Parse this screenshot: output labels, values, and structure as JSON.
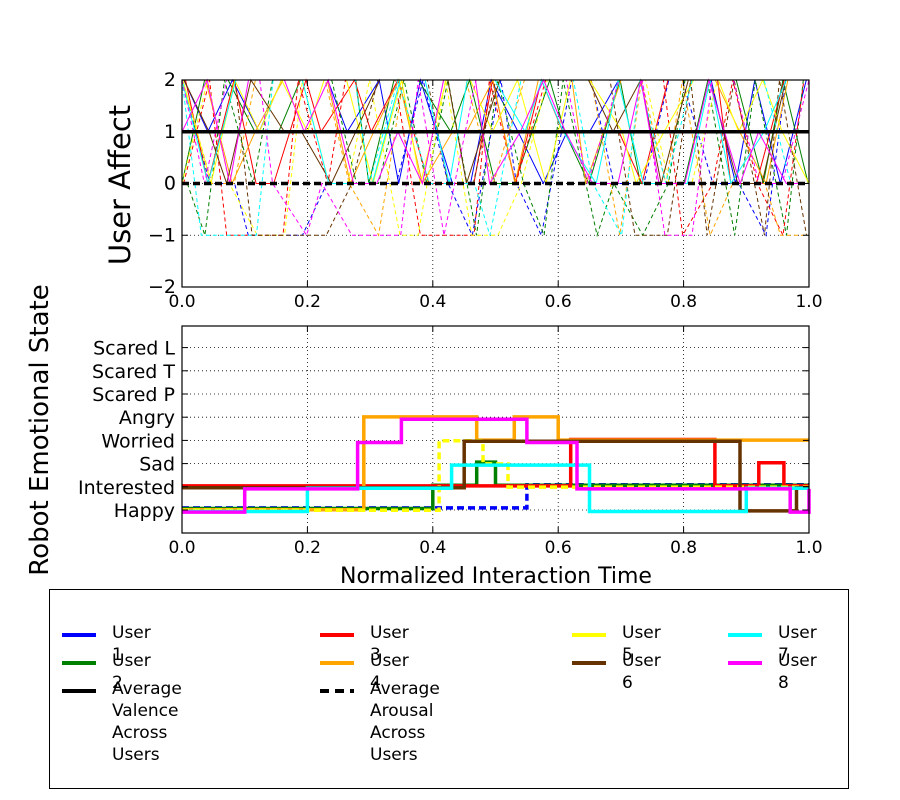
{
  "chart_data": [
    {
      "type": "line",
      "panel": "top",
      "xlabel": "",
      "ylabel": "User Affect",
      "xlim": [
        0.0,
        1.0
      ],
      "ylim": [
        -2,
        2
      ],
      "xticks": [
        "0.0",
        "0.2",
        "0.4",
        "0.6",
        "0.8",
        "1.0"
      ],
      "yticks": [
        "−2",
        "−1",
        "0",
        "1",
        "2"
      ],
      "grid": true,
      "series": [
        {
          "name": "Average Valence Across Users",
          "color": "#000000",
          "style": "solid",
          "x": [
            0.0,
            1.0
          ],
          "values": [
            1.0,
            1.0
          ]
        },
        {
          "name": "Average Arousal Across Users",
          "color": "#000000",
          "style": "dashed",
          "x": [
            0.0,
            1.0
          ],
          "values": [
            0.0,
            0.0
          ]
        }
      ],
      "note_series": "Per-user valence (solid) and arousal (dashed) traces oscillate rapidly between −1 and 2 for Users 1–8"
    },
    {
      "type": "line",
      "panel": "bottom",
      "xlabel": "Normalized Interaction Time",
      "ylabel": "Robot Emotional State",
      "xlim": [
        0.0,
        1.0
      ],
      "xticks": [
        "0.0",
        "0.2",
        "0.4",
        "0.6",
        "0.8",
        "1.0"
      ],
      "states": [
        "Happy",
        "Interested",
        "Sad",
        "Worried",
        "Angry",
        "Scared P",
        "Scared T",
        "Scared L"
      ],
      "grid": true,
      "series": [
        {
          "name": "User 1",
          "color": "#0000ff",
          "x": [
            0.0,
            0.45,
            0.52,
            0.55,
            1.0
          ],
          "values": [
            "Happy",
            "Happy",
            "Happy",
            "Interested",
            "Interested"
          ]
        },
        {
          "name": "User 2",
          "color": "#008000",
          "x": [
            0.0,
            0.4,
            0.47,
            0.5,
            1.0
          ],
          "values": [
            "Happy",
            "Interested",
            "Sad",
            "Interested",
            "Interested"
          ]
        },
        {
          "name": "User 3",
          "color": "#ff0000",
          "x": [
            0.0,
            0.62,
            0.85,
            0.92,
            0.96,
            1.0
          ],
          "values": [
            "Interested",
            "Worried",
            "Interested",
            "Sad",
            "Interested",
            "Interested"
          ]
        },
        {
          "name": "User 4",
          "color": "#ffa500",
          "x": [
            0.0,
            0.29,
            0.47,
            0.53,
            0.6,
            1.0
          ],
          "values": [
            "Happy",
            "Angry",
            "Worried",
            "Angry",
            "Worried",
            "Worried"
          ]
        },
        {
          "name": "User 5",
          "color": "#ffff00",
          "x": [
            0.0,
            0.41,
            0.48,
            0.52,
            1.0
          ],
          "values": [
            "Happy",
            "Worried",
            "Sad",
            "Interested",
            "Interested"
          ]
        },
        {
          "name": "User 6",
          "color": "#663300",
          "x": [
            0.0,
            0.45,
            0.59,
            0.89,
            0.98,
            1.0
          ],
          "values": [
            "Interested",
            "Worried",
            "Worried",
            "Happy",
            "Interested",
            "Interested"
          ]
        },
        {
          "name": "User 7",
          "color": "#00ffff",
          "x": [
            0.0,
            0.2,
            0.43,
            0.65,
            0.9,
            1.0
          ],
          "values": [
            "Happy",
            "Interested",
            "Sad",
            "Happy",
            "Interested",
            "Interested"
          ]
        },
        {
          "name": "User 8",
          "color": "#ff00ff",
          "x": [
            0.0,
            0.1,
            0.28,
            0.35,
            0.55,
            0.63,
            0.97,
            1.0
          ],
          "values": [
            "Happy",
            "Interested",
            "Worried",
            "Angry",
            "Worried",
            "Interested",
            "Happy",
            "Interested"
          ]
        }
      ]
    }
  ],
  "legend": {
    "items": [
      {
        "label": "User 1",
        "color": "#0000ff",
        "style": "solid"
      },
      {
        "label": "User 3",
        "color": "#ff0000",
        "style": "solid"
      },
      {
        "label": "User 5",
        "color": "#ffff00",
        "style": "solid"
      },
      {
        "label": "User 7",
        "color": "#00ffff",
        "style": "solid"
      },
      {
        "label": "User 2",
        "color": "#008000",
        "style": "solid"
      },
      {
        "label": "User 4",
        "color": "#ffa500",
        "style": "solid"
      },
      {
        "label": "User 6",
        "color": "#663300",
        "style": "solid"
      },
      {
        "label": "User 8",
        "color": "#ff00ff",
        "style": "solid"
      },
      {
        "label": "Average Valence\nAcross Users",
        "color": "#000000",
        "style": "solid"
      },
      {
        "label": "Average Arousal\nAcross Users",
        "color": "#000000",
        "style": "dashed"
      }
    ]
  }
}
